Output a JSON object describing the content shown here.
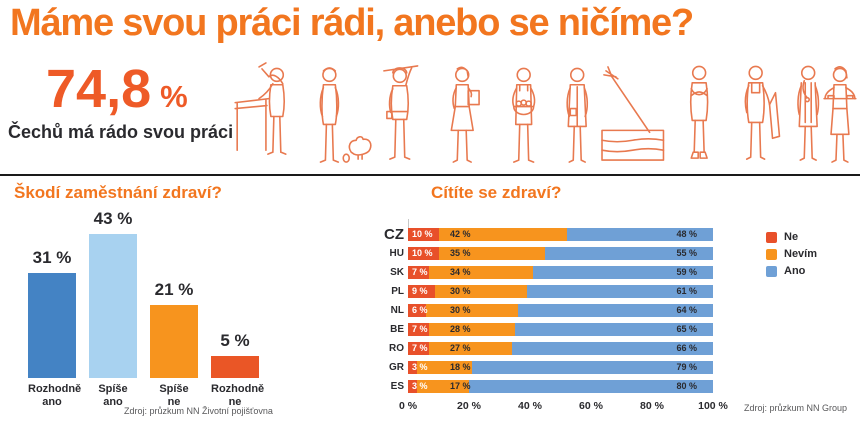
{
  "header": {
    "title": "Máme svou práci rádi, anebo se ničíme?",
    "stat_value": "74,8",
    "stat_unit": "%",
    "stat_caption": "Čechů má rádo svou práci"
  },
  "illustration": {
    "figures": [
      "craftsman-at-workbench",
      "farmer-woman-with-hen",
      "construction-worker",
      "businesswoman-with-clipboard",
      "grocer-with-basket",
      "nurse",
      "hay-bale-with-mop",
      "farmer-arms-crossed",
      "mechanic",
      "doctor",
      "waitress-with-tray"
    ]
  },
  "colors": {
    "title_orange": "#F2761F",
    "stat_orange": "#EE5A27",
    "illustration_stroke": "#E8794F",
    "text_dark": "#2A2A2E",
    "source_gray": "#58585A",
    "divider_black": "#1a1a1a"
  },
  "chart_data": [
    {
      "type": "bar",
      "title": "Škodí zaměstnání zdraví?",
      "categories": [
        "Rozhodně ano",
        "Spíše ano",
        "Spíše ne",
        "Rozhodně ne"
      ],
      "values": [
        31,
        43,
        21,
        5
      ],
      "value_labels": [
        "31 %",
        "43 %",
        "21 %",
        "5 %"
      ],
      "bar_colors": [
        "#4483C4",
        "#A8D2F0",
        "#F7941E",
        "#EA5626"
      ],
      "ylim": [
        0,
        50
      ],
      "grid": false,
      "source": "Zdroj: průzkum NN Životní pojišťovna"
    },
    {
      "type": "bar",
      "orientation": "horizontal-stacked",
      "title": "Cítíte se zdraví?",
      "categories": [
        "CZ",
        "HU",
        "SK",
        "PL",
        "NL",
        "BE",
        "RO",
        "GR",
        "ES"
      ],
      "series": [
        {
          "name": "Ne",
          "color": "#E8502A",
          "values": [
            10,
            10,
            7,
            9,
            6,
            7,
            7,
            3,
            3
          ]
        },
        {
          "name": "Nevím",
          "color": "#F7941E",
          "values": [
            42,
            35,
            34,
            30,
            30,
            28,
            27,
            18,
            17
          ]
        },
        {
          "name": "Ano",
          "color": "#6FA0D6",
          "values": [
            48,
            55,
            59,
            61,
            64,
            65,
            66,
            79,
            80
          ]
        }
      ],
      "x_ticks": [
        "0 %",
        "20 %",
        "40 %",
        "60 %",
        "80 %",
        "100 %"
      ],
      "xlim": [
        0,
        100
      ],
      "legend_position": "top-right",
      "source": "Zdroj: průzkum NN Group"
    }
  ]
}
